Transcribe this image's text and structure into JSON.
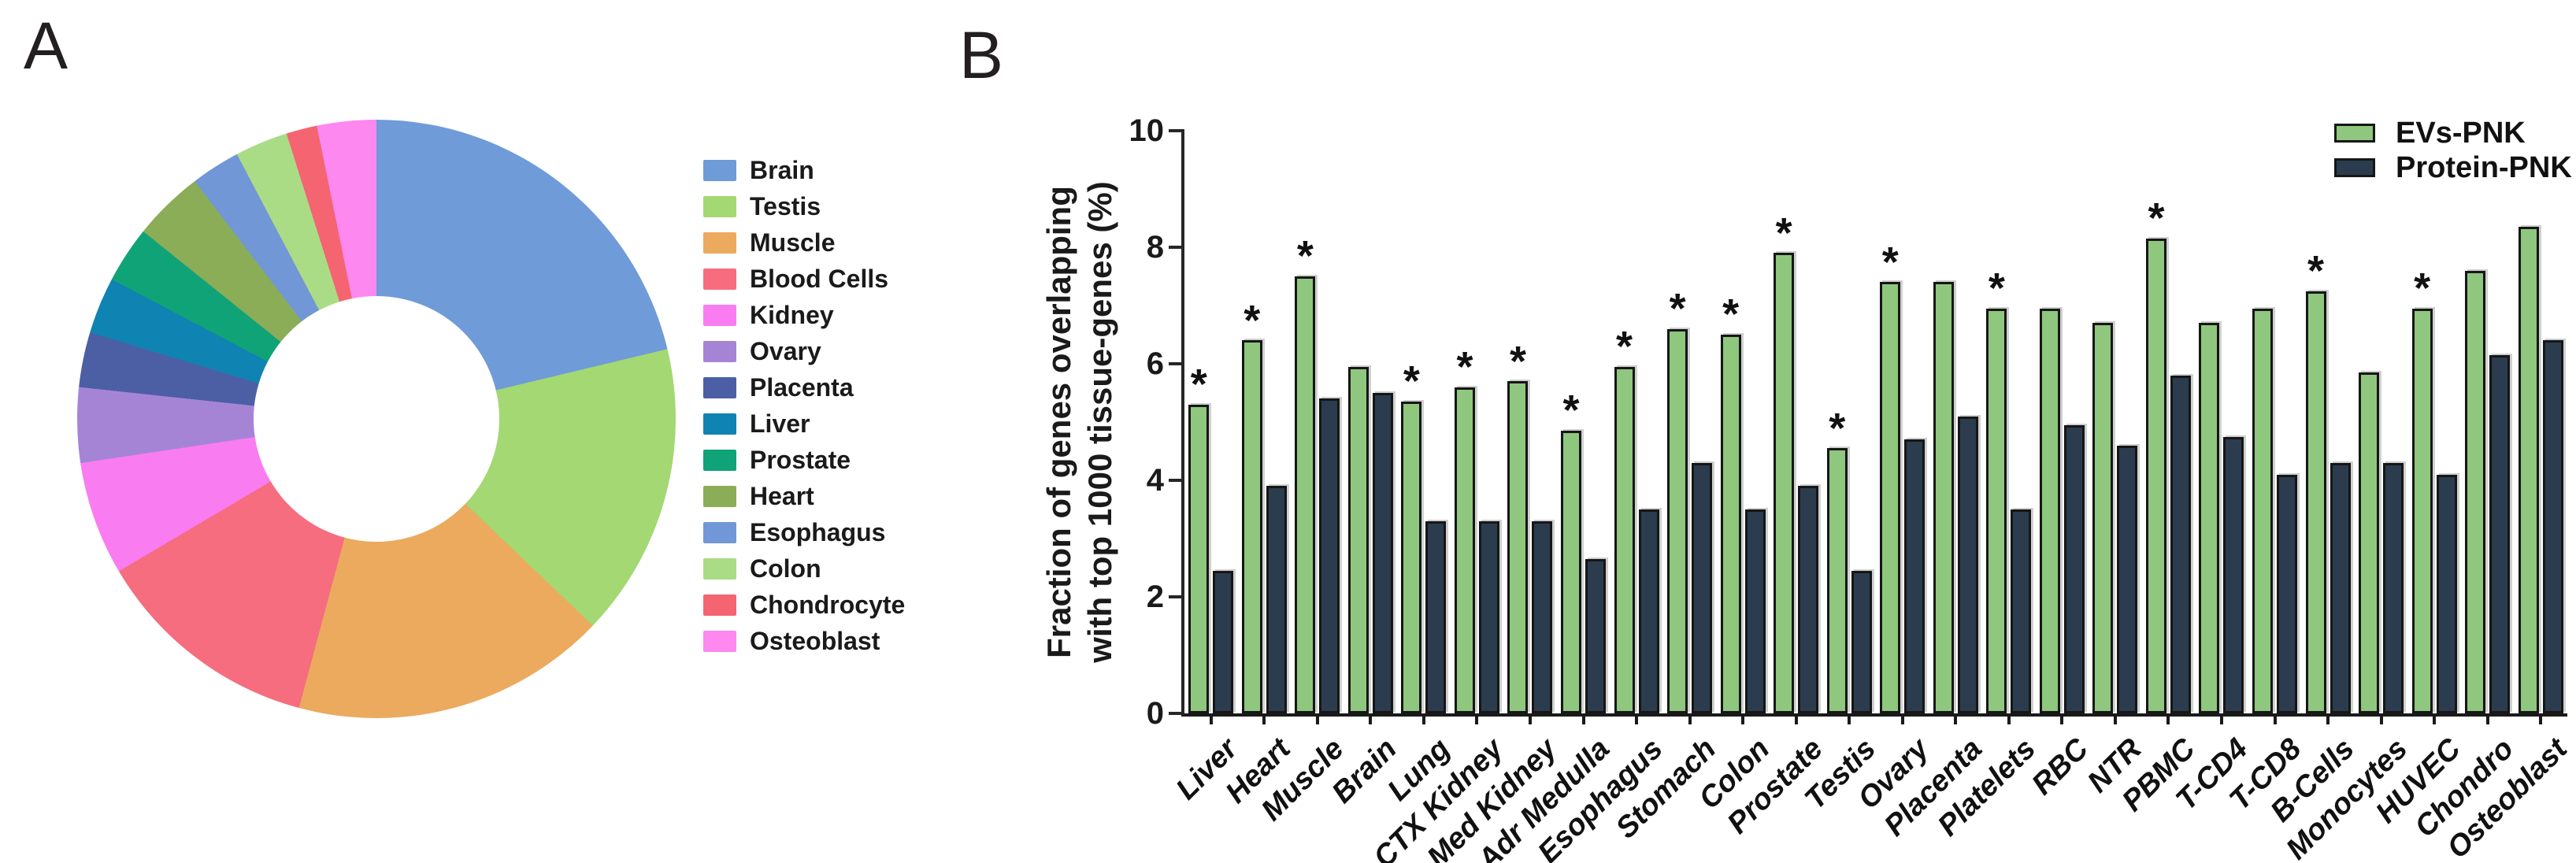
{
  "figure": {
    "background": "#ffffff",
    "panel_a_label": "A",
    "panel_b_label": "B"
  },
  "chart_data": [
    {
      "type": "pie",
      "subtype": "donut",
      "panel": "A",
      "title": "",
      "legend_position": "right",
      "start_angle_deg": 0,
      "direction": "clockwise",
      "inner_radius_ratio": 0.41,
      "labels": [
        "Brain",
        "Testis",
        "Muscle",
        "Blood Cells",
        "Kidney",
        "Ovary",
        "Placenta",
        "Liver",
        "Prostate",
        "Heart",
        "Esophagus",
        "Colon",
        "Chondrocyte",
        "Osteoblast"
      ],
      "values_deg": [
        76.5,
        57.2,
        61.3,
        44.4,
        22.1,
        14.6,
        10.7,
        11.0,
        11.0,
        13.8,
        9.6,
        10.3,
        6.0,
        11.5
      ],
      "values_pct": [
        21.2,
        15.9,
        17.0,
        12.3,
        6.1,
        4.1,
        3.0,
        3.1,
        3.1,
        3.8,
        2.7,
        2.9,
        1.7,
        3.2
      ],
      "colors": [
        "#6f9bd8",
        "#a3d873",
        "#ebaa5e",
        "#f56d7e",
        "#fa7cf1",
        "#a584d6",
        "#4c5fa5",
        "#0f83b2",
        "#10a377",
        "#8bad57",
        "#7197d6",
        "#a9dc85",
        "#f56471",
        "#fc88f0"
      ]
    },
    {
      "type": "bar",
      "panel": "B",
      "title": "",
      "ylabel_lines": [
        "Fraction of genes overlapping",
        "with top 1000 tissue-genes (%)"
      ],
      "ylim": [
        0,
        10
      ],
      "yticks": [
        0,
        2,
        4,
        6,
        8,
        10
      ],
      "grid": false,
      "legend_position": "top-right",
      "sig_symbol": "*",
      "sig_on_series": "EVs-PNK",
      "categories": [
        "Liver",
        "Heart",
        "Muscle",
        "Brain",
        "Lung",
        "CTX Kidney",
        "Med Kidney",
        "Adr Medulla",
        "Esophagus",
        "Stomach",
        "Colon",
        "Prostate",
        "Testis",
        "Ovary",
        "Placenta",
        "Platelets",
        "RBC",
        "NTR",
        "PBMC",
        "T-CD4",
        "T-CD8",
        "B-Cells",
        "Monocytes",
        "HUVEC",
        "Chondro",
        "Osteoblast"
      ],
      "significant": [
        1,
        1,
        1,
        0,
        1,
        1,
        1,
        1,
        1,
        1,
        1,
        1,
        1,
        1,
        0,
        1,
        0,
        0,
        1,
        0,
        0,
        1,
        0,
        1,
        0,
        0
      ],
      "series": [
        {
          "name": "EVs-PNK",
          "color": "#8ec77d",
          "values": [
            5.3,
            6.4,
            7.5,
            5.95,
            5.35,
            5.6,
            5.7,
            4.85,
            5.95,
            6.6,
            6.5,
            7.9,
            4.55,
            7.4,
            7.4,
            6.95,
            6.95,
            6.7,
            8.15,
            6.7,
            6.95,
            7.25,
            5.85,
            6.95,
            7.6,
            8.35
          ]
        },
        {
          "name": "Protein-PNK",
          "color": "#2b3c4e",
          "values": [
            2.45,
            3.9,
            5.4,
            5.5,
            3.3,
            3.3,
            3.3,
            2.65,
            3.5,
            4.3,
            3.5,
            3.9,
            2.45,
            4.7,
            5.1,
            3.5,
            4.95,
            4.6,
            5.8,
            4.75,
            4.1,
            4.3,
            4.3,
            4.1,
            6.15,
            6.4
          ]
        }
      ]
    }
  ]
}
